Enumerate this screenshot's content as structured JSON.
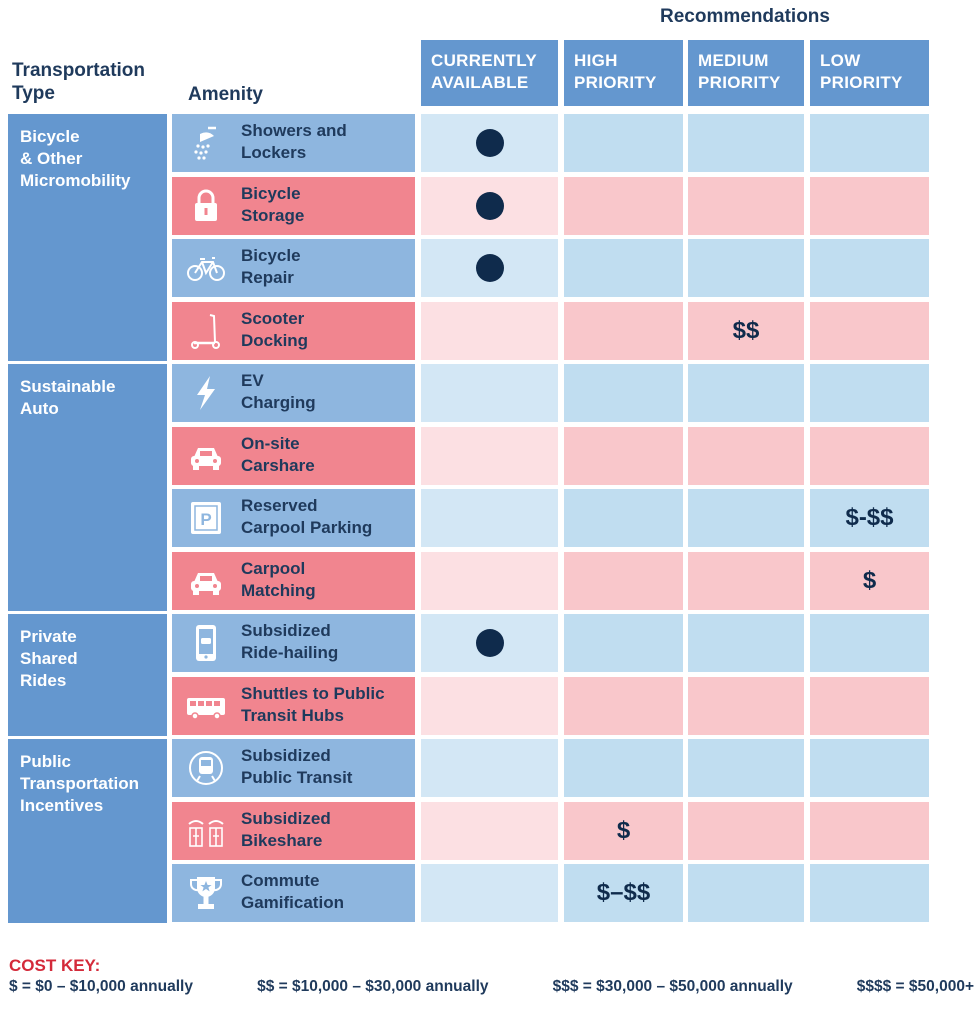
{
  "header": {
    "recommendations": "Recommendations",
    "transportation_type": "Transportation\nType",
    "amenity": "Amenity",
    "columns": [
      "CURRENTLY\nAVAILABLE",
      "HIGH\nPRIORITY",
      "MEDIUM\nPRIORITY",
      "LOW\nPRIORITY"
    ]
  },
  "types": [
    {
      "label": "Bicycle\n& Other\nMicromobility"
    },
    {
      "label": "Sustainable\nAuto"
    },
    {
      "label": "Private\nShared\nRides"
    },
    {
      "label": "Public\nTransportation\nIncentives"
    }
  ],
  "rows": [
    {
      "label": "Showers and\nLockers",
      "icon": "shower-icon",
      "color": "blue",
      "cells": [
        "●",
        "",
        "",
        ""
      ]
    },
    {
      "label": "Bicycle\nStorage",
      "icon": "lock-icon",
      "color": "red",
      "cells": [
        "●",
        "",
        "",
        ""
      ]
    },
    {
      "label": "Bicycle\nRepair",
      "icon": "bicycle-icon",
      "color": "blue",
      "cells": [
        "●",
        "",
        "",
        ""
      ]
    },
    {
      "label": "Scooter\nDocking",
      "icon": "scooter-icon",
      "color": "red",
      "cells": [
        "",
        "",
        "$$",
        ""
      ]
    },
    {
      "label": "EV\nCharging",
      "icon": "lightning-icon",
      "color": "blue",
      "cells": [
        "",
        "",
        "",
        ""
      ]
    },
    {
      "label": "On-site\nCarshare",
      "icon": "car-icon",
      "color": "red",
      "cells": [
        "",
        "",
        "",
        ""
      ]
    },
    {
      "label": "Reserved\nCarpool Parking",
      "icon": "parking-icon",
      "color": "blue",
      "cells": [
        "",
        "",
        "",
        "$-$$"
      ]
    },
    {
      "label": "Carpool\nMatching",
      "icon": "car-icon",
      "color": "red",
      "cells": [
        "",
        "",
        "",
        "$"
      ]
    },
    {
      "label": "Subsidized\nRide-hailing",
      "icon": "phone-car-icon",
      "color": "blue",
      "cells": [
        "●",
        "",
        "",
        ""
      ]
    },
    {
      "label": "Shuttles to Public\nTransit Hubs",
      "icon": "bus-icon",
      "color": "red",
      "cells": [
        "",
        "",
        "",
        ""
      ]
    },
    {
      "label": "Subsidized\nPublic Transit",
      "icon": "train-icon",
      "color": "blue",
      "cells": [
        "",
        "",
        "",
        ""
      ]
    },
    {
      "label": "Subsidized\nBikeshare",
      "icon": "bikeshare-icon",
      "color": "red",
      "cells": [
        "",
        "$",
        "",
        ""
      ]
    },
    {
      "label": "Commute\nGamification",
      "icon": "trophy-icon",
      "color": "blue",
      "cells": [
        "",
        "$–$$",
        "",
        ""
      ]
    }
  ],
  "cost_key": {
    "title": "COST KEY:",
    "items": [
      "$ = $0 – $10,000 annually",
      "$$ = $10,000 – $30,000 annually",
      "$$$ = $30,000 – $50,000 annually",
      "$$$$ = $50,000+"
    ]
  }
}
